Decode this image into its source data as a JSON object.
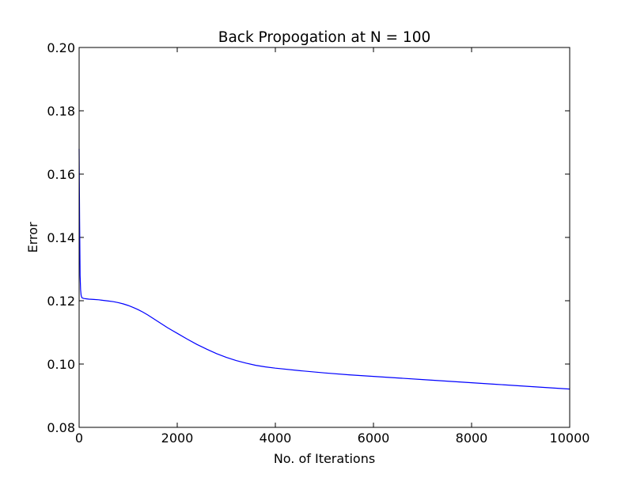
{
  "chart_data": {
    "type": "line",
    "title": "Back Propogation at N = 100",
    "xlabel": "No. of Iterations",
    "ylabel": "Error",
    "xlim": [
      0,
      10000
    ],
    "ylim": [
      0.08,
      0.2
    ],
    "xticks": [
      0,
      2000,
      4000,
      6000,
      8000,
      10000
    ],
    "xtick_labels": [
      "0",
      "2000",
      "4000",
      "6000",
      "8000",
      "10000"
    ],
    "yticks": [
      0.08,
      0.1,
      0.12,
      0.14,
      0.16,
      0.18,
      0.2
    ],
    "ytick_labels": [
      "0.08",
      "0.10",
      "0.12",
      "0.14",
      "0.16",
      "0.18",
      "0.20"
    ],
    "grid": false,
    "line_color": "#0000ff",
    "series": [
      {
        "x": [
          0,
          10,
          20,
          30,
          40,
          50,
          60,
          80,
          100,
          150,
          200,
          300,
          400,
          500,
          600,
          700,
          800,
          900,
          1000,
          1100,
          1200,
          1300,
          1400,
          1500,
          1600,
          1700,
          1800,
          1900,
          2000,
          2200,
          2400,
          2600,
          2800,
          3000,
          3200,
          3400,
          3600,
          3800,
          4000,
          4500,
          5000,
          5500,
          6000,
          6500,
          7000,
          7500,
          8000,
          8500,
          9000,
          9500,
          10000
        ],
        "values": [
          0.168,
          0.145,
          0.128,
          0.1235,
          0.1218,
          0.1212,
          0.1209,
          0.1208,
          0.1207,
          0.1206,
          0.1205,
          0.1204,
          0.1203,
          0.1201,
          0.1199,
          0.1197,
          0.1194,
          0.119,
          0.1185,
          0.1179,
          0.1172,
          0.1164,
          0.1155,
          0.1145,
          0.1135,
          0.1125,
          0.1115,
          0.1106,
          0.1097,
          0.1079,
          0.1062,
          0.1047,
          0.1033,
          0.1021,
          0.1011,
          0.1003,
          0.0996,
          0.0991,
          0.0987,
          0.0979,
          0.0972,
          0.0966,
          0.0961,
          0.0956,
          0.0951,
          0.0946,
          0.0941,
          0.0936,
          0.0931,
          0.0926,
          0.0921
        ]
      }
    ]
  }
}
